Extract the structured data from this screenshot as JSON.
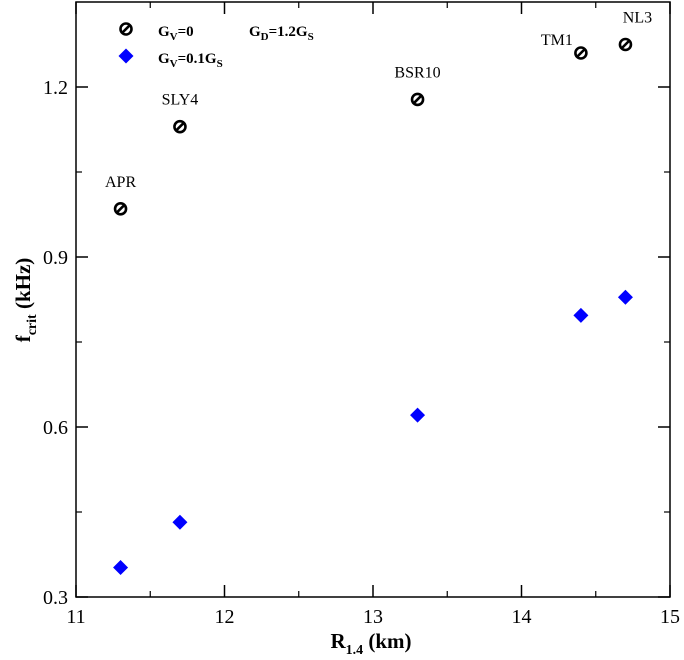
{
  "chart_data": {
    "type": "scatter",
    "xlim": [
      11,
      15
    ],
    "ylim": [
      0.3,
      1.35
    ],
    "x_ticks": [
      11,
      12,
      13,
      14,
      15
    ],
    "x_tick_labels": [
      "11",
      "12",
      "13",
      "14",
      "15"
    ],
    "y_ticks": [
      0.3,
      0.6,
      0.9,
      1.2
    ],
    "y_tick_labels": [
      "0.3",
      "0.6",
      "0.9",
      "1.2"
    ],
    "grid": false,
    "xlabel": {
      "main": "R",
      "sub": "1.4",
      "tail": " (km)"
    },
    "ylabel": {
      "main": "f",
      "sub": "crit",
      "tail": " (kHz)"
    },
    "annotation": {
      "main": "G",
      "sub1": "D",
      "mid": "=1.2G",
      "sub2": "S"
    },
    "legend_position": "top-left",
    "series": [
      {
        "name": "G_V=0",
        "legend": {
          "main": "G",
          "sub1": "V",
          "tail": "=0",
          "sub2": ""
        },
        "marker": "open-circle-slash",
        "color": "#000000",
        "x": [
          11.3,
          11.7,
          13.3,
          14.4,
          14.7
        ],
        "y": [
          0.985,
          1.13,
          1.178,
          1.26,
          1.275
        ],
        "labels": [
          "APR",
          "SLY4",
          "BSR10",
          "TM1",
          "NL3"
        ]
      },
      {
        "name": "G_V=0.1G_S",
        "legend": {
          "main": "G",
          "sub1": "V",
          "tail": "=0.1G",
          "sub2": "S"
        },
        "marker": "diamond",
        "color": "#0000ff",
        "x": [
          11.3,
          11.7,
          13.3,
          14.4,
          14.7
        ],
        "y": [
          0.352,
          0.432,
          0.621,
          0.797,
          0.829
        ]
      }
    ]
  }
}
